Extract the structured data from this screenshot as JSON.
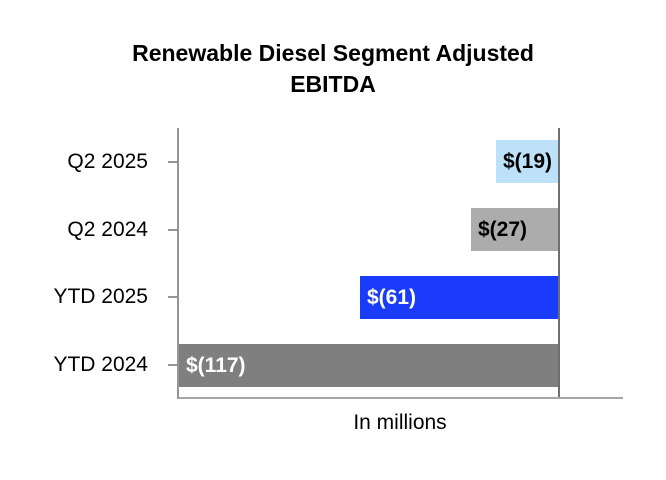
{
  "title": "Renewable Diesel Segment Adjusted EBITDA",
  "chart_data": {
    "type": "bar",
    "orientation": "horizontal",
    "title": "Renewable Diesel Segment Adjusted EBITDA",
    "categories": [
      "Q2 2025",
      "Q2 2024",
      "YTD 2025",
      "YTD 2024"
    ],
    "values": [
      -19,
      -27,
      -61,
      -117
    ],
    "value_labels": [
      "$(19)",
      "$(27)",
      "$(61)",
      "$(117)"
    ],
    "series": [
      {
        "name": "Adjusted EBITDA",
        "values": [
          -19,
          -27,
          -61,
          -117
        ]
      }
    ],
    "xlabel": "In millions",
    "ylabel": "",
    "xlim": [
      -117.5,
      20
    ],
    "grid": false,
    "legend_position": "none",
    "zero_baseline": true,
    "bar_colors": [
      "#BDE1F8",
      "#ACACAC",
      "#1A3CFA",
      "#7F7F7F"
    ],
    "value_label_colors": [
      "#000000",
      "#000000",
      "#FFFFFF",
      "#FFFFFF"
    ]
  },
  "colors": {
    "background": "#FFFFFF",
    "axis": "#959595",
    "zero_line": "#6F6F6F",
    "title_text": "#000000"
  }
}
